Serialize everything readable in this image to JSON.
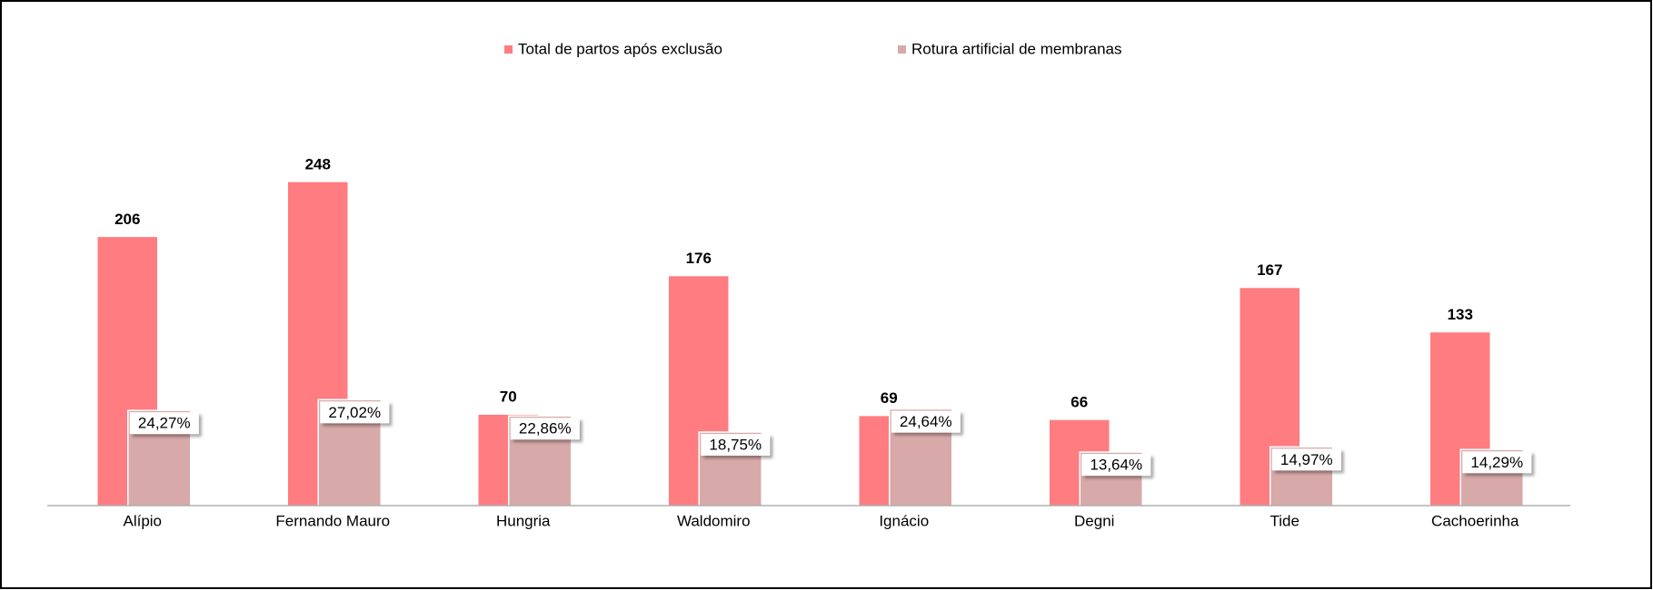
{
  "chart_data": {
    "type": "bar",
    "categories": [
      "Alípio",
      "Fernando Mauro",
      "Hungria",
      "Waldomiro",
      "Ignácio",
      "Degni",
      "Tide",
      "Cachoerinha"
    ],
    "series": [
      {
        "name": "Total de partos após exclusão",
        "color": "#ff7c80",
        "values": [
          206,
          248,
          70,
          176,
          69,
          66,
          167,
          133
        ]
      },
      {
        "name": "Rotura artificial de membranas",
        "color": "#d8a9a9",
        "axis": "y2",
        "values": [
          24.27,
          27.02,
          22.86,
          18.75,
          24.64,
          13.64,
          14.97,
          14.29
        ],
        "value_labels": [
          "24,27%",
          "27,02%",
          "22,86%",
          "18,75%",
          "24,64%",
          "13,64%",
          "14,97%",
          "14,29%"
        ]
      }
    ],
    "ylim": [
      0,
      300
    ],
    "y2lim": [
      0,
      100
    ],
    "legend": "top"
  }
}
